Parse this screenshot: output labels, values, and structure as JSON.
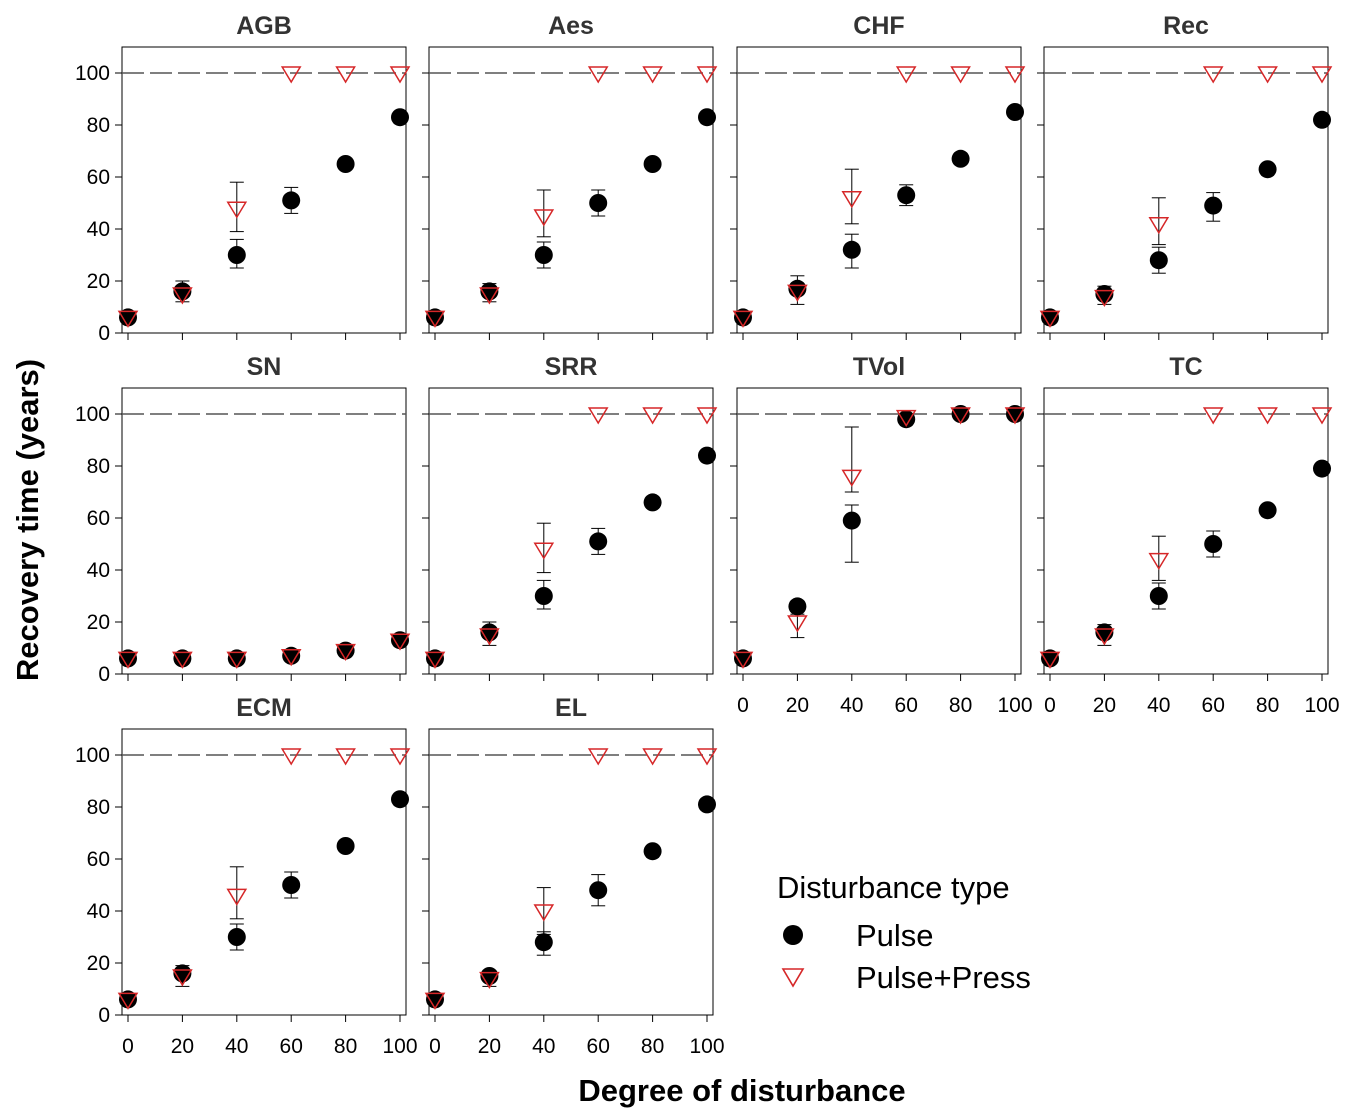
{
  "figure": {
    "ylabel": "Recovery time (years)",
    "xlabel": "Degree of disturbance",
    "legend": {
      "title": "Disturbance type",
      "placement": "bottom-right",
      "items": [
        {
          "label": "Pulse",
          "marker": "filled-circle",
          "color": "#000000"
        },
        {
          "label": "Pulse+Press",
          "marker": "open-triangle-down",
          "color": "#d62728"
        }
      ]
    }
  },
  "chart_data": [
    {
      "type": "scatter",
      "title": "AGB",
      "x": [
        0,
        20,
        40,
        60,
        80,
        100
      ],
      "xlim": [
        0,
        100
      ],
      "ylim": [
        0,
        110
      ],
      "yticks": [
        0,
        20,
        40,
        60,
        80,
        100
      ],
      "reference_line": 100,
      "series": [
        {
          "name": "Pulse",
          "values": [
            6,
            16,
            30,
            51,
            65,
            83
          ],
          "err_low": [
            null,
            12,
            25,
            46,
            null,
            null
          ],
          "err_high": [
            null,
            20,
            36,
            56,
            null,
            null
          ]
        },
        {
          "name": "Pulse+Press",
          "values": [
            6,
            15,
            48,
            100,
            100,
            100
          ],
          "err_low": [
            null,
            null,
            39,
            null,
            null,
            null
          ],
          "err_high": [
            null,
            null,
            58,
            null,
            null,
            null
          ]
        }
      ]
    },
    {
      "type": "scatter",
      "title": "Aes",
      "x": [
        0,
        20,
        40,
        60,
        80,
        100
      ],
      "xlim": [
        0,
        100
      ],
      "ylim": [
        0,
        110
      ],
      "yticks": [
        0,
        20,
        40,
        60,
        80,
        100
      ],
      "reference_line": 100,
      "series": [
        {
          "name": "Pulse",
          "values": [
            6,
            16,
            30,
            50,
            65,
            83
          ],
          "err_low": [
            null,
            12,
            25,
            45,
            null,
            null
          ],
          "err_high": [
            null,
            19,
            35,
            55,
            null,
            null
          ]
        },
        {
          "name": "Pulse+Press",
          "values": [
            6,
            15,
            45,
            100,
            100,
            100
          ],
          "err_low": [
            null,
            null,
            37,
            null,
            null,
            null
          ],
          "err_high": [
            null,
            null,
            55,
            null,
            null,
            null
          ]
        }
      ]
    },
    {
      "type": "scatter",
      "title": "CHF",
      "x": [
        0,
        20,
        40,
        60,
        80,
        100
      ],
      "xlim": [
        0,
        100
      ],
      "ylim": [
        0,
        110
      ],
      "yticks": [
        0,
        20,
        40,
        60,
        80,
        100
      ],
      "reference_line": 100,
      "series": [
        {
          "name": "Pulse",
          "values": [
            6,
            17,
            32,
            53,
            67,
            85
          ],
          "err_low": [
            null,
            11,
            25,
            49,
            null,
            null
          ],
          "err_high": [
            null,
            22,
            38,
            57,
            null,
            null
          ]
        },
        {
          "name": "Pulse+Press",
          "values": [
            6,
            16,
            52,
            100,
            100,
            100
          ],
          "err_low": [
            null,
            null,
            42,
            null,
            null,
            null
          ],
          "err_high": [
            null,
            null,
            63,
            null,
            null,
            null
          ]
        }
      ]
    },
    {
      "type": "scatter",
      "title": "Rec",
      "x": [
        0,
        20,
        40,
        60,
        80,
        100
      ],
      "xlim": [
        0,
        100
      ],
      "ylim": [
        0,
        110
      ],
      "yticks": [
        0,
        20,
        40,
        60,
        80,
        100
      ],
      "reference_line": 100,
      "series": [
        {
          "name": "Pulse",
          "values": [
            6,
            15,
            28,
            49,
            63,
            82
          ],
          "err_low": [
            null,
            11,
            23,
            43,
            null,
            null
          ],
          "err_high": [
            null,
            18,
            33,
            54,
            null,
            null
          ]
        },
        {
          "name": "Pulse+Press",
          "values": [
            6,
            14,
            42,
            100,
            100,
            100
          ],
          "err_low": [
            null,
            null,
            34,
            null,
            null,
            null
          ],
          "err_high": [
            null,
            null,
            52,
            null,
            null,
            null
          ]
        }
      ]
    },
    {
      "type": "scatter",
      "title": "SN",
      "x": [
        0,
        20,
        40,
        60,
        80,
        100
      ],
      "xlim": [
        0,
        100
      ],
      "ylim": [
        0,
        110
      ],
      "yticks": [
        0,
        20,
        40,
        60,
        80,
        100
      ],
      "reference_line": 100,
      "series": [
        {
          "name": "Pulse",
          "values": [
            6,
            6,
            6,
            7,
            9,
            13
          ],
          "err_low": [
            null,
            null,
            null,
            null,
            null,
            null
          ],
          "err_high": [
            null,
            null,
            null,
            null,
            null,
            null
          ]
        },
        {
          "name": "Pulse+Press",
          "values": [
            6,
            6,
            6,
            7,
            9,
            13
          ],
          "err_low": [
            null,
            null,
            null,
            null,
            null,
            null
          ],
          "err_high": [
            null,
            null,
            null,
            null,
            null,
            null
          ]
        }
      ]
    },
    {
      "type": "scatter",
      "title": "SRR",
      "x": [
        0,
        20,
        40,
        60,
        80,
        100
      ],
      "xlim": [
        0,
        100
      ],
      "ylim": [
        0,
        110
      ],
      "yticks": [
        0,
        20,
        40,
        60,
        80,
        100
      ],
      "reference_line": 100,
      "series": [
        {
          "name": "Pulse",
          "values": [
            6,
            16,
            30,
            51,
            66,
            84
          ],
          "err_low": [
            null,
            11,
            25,
            46,
            null,
            null
          ],
          "err_high": [
            null,
            20,
            36,
            56,
            null,
            null
          ]
        },
        {
          "name": "Pulse+Press",
          "values": [
            6,
            15,
            48,
            100,
            100,
            100
          ],
          "err_low": [
            null,
            null,
            39,
            null,
            null,
            null
          ],
          "err_high": [
            null,
            null,
            58,
            null,
            null,
            null
          ]
        }
      ]
    },
    {
      "type": "scatter",
      "title": "TVol",
      "x": [
        0,
        20,
        40,
        60,
        80,
        100
      ],
      "xlim": [
        0,
        100
      ],
      "ylim": [
        0,
        110
      ],
      "yticks": [
        0,
        20,
        40,
        60,
        80,
        100
      ],
      "reference_line": 100,
      "series": [
        {
          "name": "Pulse",
          "values": [
            6,
            26,
            59,
            98,
            100,
            100
          ],
          "err_low": [
            null,
            23,
            43,
            null,
            null,
            null
          ],
          "err_high": [
            null,
            28,
            65,
            null,
            null,
            null
          ]
        },
        {
          "name": "Pulse+Press",
          "values": [
            6,
            20,
            76,
            99,
            100,
            100
          ],
          "err_low": [
            null,
            14,
            70,
            null,
            null,
            null
          ],
          "err_high": [
            null,
            24,
            95,
            null,
            null,
            null
          ]
        }
      ]
    },
    {
      "type": "scatter",
      "title": "TC",
      "x": [
        0,
        20,
        40,
        60,
        80,
        100
      ],
      "xlim": [
        0,
        100
      ],
      "ylim": [
        0,
        110
      ],
      "yticks": [
        0,
        20,
        40,
        60,
        80,
        100
      ],
      "reference_line": 100,
      "series": [
        {
          "name": "Pulse",
          "values": [
            6,
            16,
            30,
            50,
            63,
            79
          ],
          "err_low": [
            null,
            11,
            25,
            45,
            null,
            null
          ],
          "err_high": [
            null,
            19,
            35,
            55,
            null,
            null
          ]
        },
        {
          "name": "Pulse+Press",
          "values": [
            6,
            15,
            44,
            100,
            100,
            100
          ],
          "err_low": [
            null,
            null,
            36,
            null,
            null,
            null
          ],
          "err_high": [
            null,
            null,
            53,
            null,
            null,
            null
          ]
        }
      ]
    },
    {
      "type": "scatter",
      "title": "ECM",
      "x": [
        0,
        20,
        40,
        60,
        80,
        100
      ],
      "xlim": [
        0,
        100
      ],
      "ylim": [
        0,
        110
      ],
      "yticks": [
        0,
        20,
        40,
        60,
        80,
        100
      ],
      "reference_line": 100,
      "series": [
        {
          "name": "Pulse",
          "values": [
            6,
            16,
            30,
            50,
            65,
            83
          ],
          "err_low": [
            null,
            11,
            25,
            45,
            null,
            null
          ],
          "err_high": [
            null,
            19,
            35,
            55,
            null,
            null
          ]
        },
        {
          "name": "Pulse+Press",
          "values": [
            6,
            15,
            46,
            100,
            100,
            100
          ],
          "err_low": [
            null,
            null,
            37,
            null,
            null,
            null
          ],
          "err_high": [
            null,
            null,
            57,
            null,
            null,
            null
          ]
        }
      ]
    },
    {
      "type": "scatter",
      "title": "EL",
      "x": [
        0,
        20,
        40,
        60,
        80,
        100
      ],
      "xlim": [
        0,
        100
      ],
      "ylim": [
        0,
        110
      ],
      "yticks": [
        0,
        20,
        40,
        60,
        80,
        100
      ],
      "reference_line": 100,
      "series": [
        {
          "name": "Pulse",
          "values": [
            6,
            15,
            28,
            48,
            63,
            81
          ],
          "err_low": [
            null,
            11,
            23,
            42,
            null,
            null
          ],
          "err_high": [
            null,
            17,
            32,
            54,
            null,
            null
          ]
        },
        {
          "name": "Pulse+Press",
          "values": [
            6,
            14,
            40,
            100,
            100,
            100
          ],
          "err_low": [
            null,
            null,
            31,
            null,
            null,
            null
          ],
          "err_high": [
            null,
            null,
            49,
            null,
            null,
            null
          ]
        }
      ]
    }
  ]
}
